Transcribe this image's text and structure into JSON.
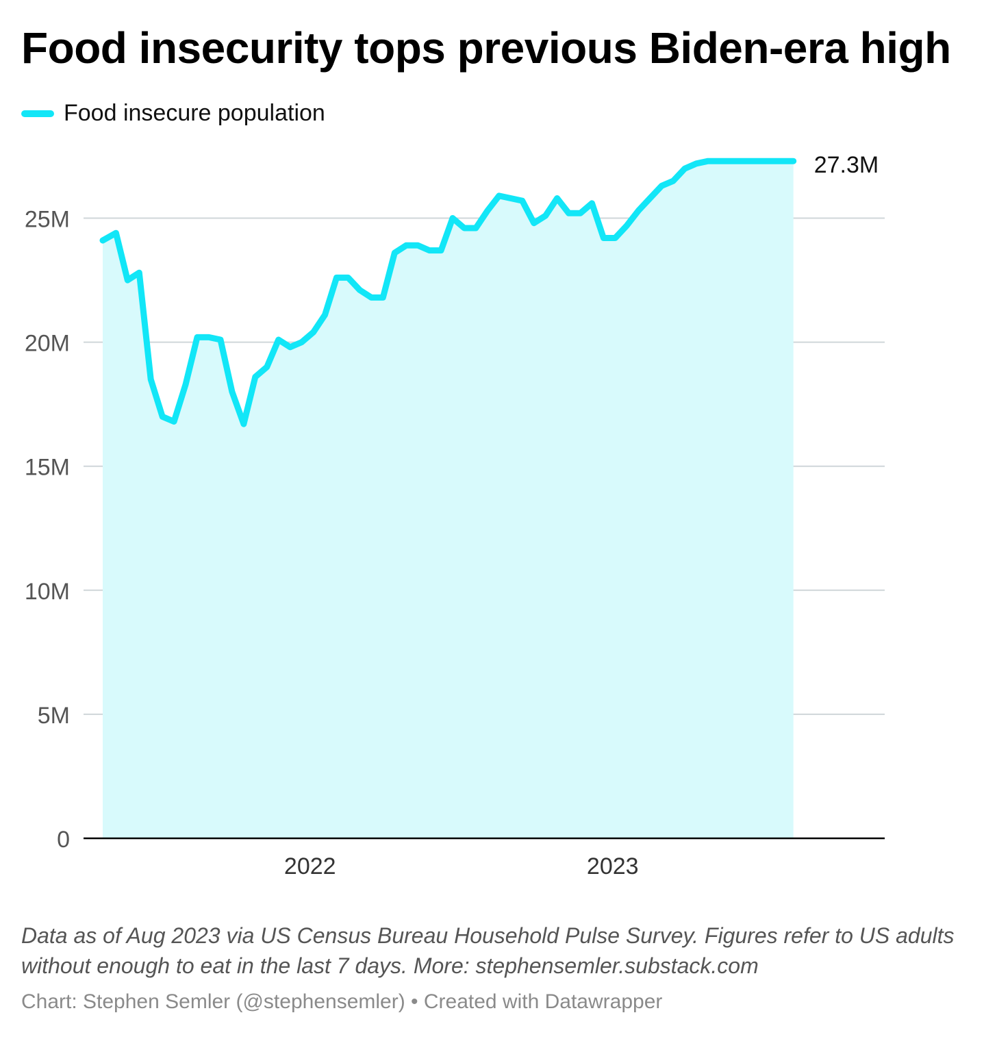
{
  "title": "Food insecurity tops previous Biden-era high",
  "legend": {
    "label": "Food insecure population"
  },
  "colors": {
    "line": "#12e6f7",
    "area": "#d8fafc",
    "grid": "#cfd6d9",
    "axis": "#000000"
  },
  "footer": {
    "notes": "Data as of Aug 2023 via US Census Bureau Household Pulse Survey. Figures refer to US adults without enough to eat in the last 7 days. More: stephensemler.substack.com",
    "credit": "Chart: Stephen Semler (@stephensemler) • Created with Datawrapper"
  },
  "chart_data": {
    "type": "area",
    "title": "Food insecurity tops previous Biden-era high",
    "series": [
      {
        "name": "Food insecure population",
        "x": [
          "2021-04-26",
          "2021-05-12",
          "2021-05-26",
          "2021-06-09",
          "2021-06-23",
          "2021-07-07",
          "2021-07-21",
          "2021-08-04",
          "2021-08-18",
          "2021-09-01",
          "2021-09-15",
          "2021-09-29",
          "2021-10-13",
          "2021-10-27",
          "2021-11-10",
          "2021-11-24",
          "2021-12-08",
          "2021-12-22",
          "2022-01-05",
          "2022-01-19",
          "2022-02-02",
          "2022-02-16",
          "2022-03-02",
          "2022-03-16",
          "2022-03-30",
          "2022-04-13",
          "2022-04-27",
          "2022-05-11",
          "2022-05-25",
          "2022-06-08",
          "2022-06-22",
          "2022-07-06",
          "2022-07-20",
          "2022-08-03",
          "2022-08-17",
          "2022-08-31",
          "2022-09-14",
          "2022-09-28",
          "2022-10-12",
          "2022-10-26",
          "2022-11-09",
          "2022-11-23",
          "2022-12-07",
          "2022-12-21",
          "2023-01-04",
          "2023-01-18",
          "2023-02-01",
          "2023-02-15",
          "2023-03-01",
          "2023-03-15",
          "2023-03-29",
          "2023-04-12",
          "2023-04-26",
          "2023-05-10",
          "2023-05-24",
          "2023-06-07",
          "2023-06-21",
          "2023-07-05",
          "2023-07-19",
          "2023-08-07"
        ],
        "values": [
          24.1,
          24.4,
          22.5,
          22.8,
          18.5,
          17.0,
          16.8,
          18.3,
          20.2,
          20.2,
          20.1,
          18.0,
          16.7,
          18.6,
          19.0,
          20.1,
          19.8,
          20.0,
          20.4,
          21.1,
          22.6,
          22.6,
          22.1,
          21.8,
          21.8,
          23.6,
          23.9,
          23.9,
          23.7,
          23.7,
          25.0,
          24.6,
          24.6,
          25.3,
          25.9,
          25.8,
          25.7,
          24.8,
          25.1,
          25.8,
          25.2,
          25.2,
          25.6,
          24.2,
          24.2,
          24.7,
          25.3,
          25.8,
          26.3,
          26.5,
          27.0,
          27.2,
          27.3,
          27.3,
          27.3,
          27.3,
          27.3,
          27.3,
          27.3,
          27.3
        ],
        "end_label": "27.3M"
      }
    ],
    "x_ticks": [
      "2022",
      "2023"
    ],
    "y_ticks": [
      "0",
      "5M",
      "10M",
      "15M",
      "20M",
      "25M"
    ],
    "ylim": [
      0,
      27.3
    ],
    "y_unit": "millions",
    "grid": true,
    "legend_position": "top-left"
  }
}
